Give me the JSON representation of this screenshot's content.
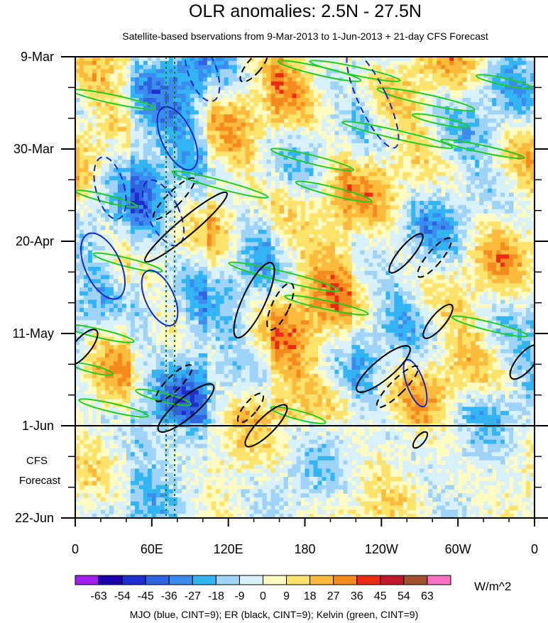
{
  "chart_data": {
    "type": "heatmap",
    "title": "OLR anomalies: 2.5N - 27.5N",
    "subtitle": "Satellite-based bservations from 9-Mar-2013 to 1-Jun-2013 + 21-day CFS Forecast",
    "x_ticks": [
      "0",
      "60E",
      "120E",
      "180",
      "120W",
      "60W",
      "0"
    ],
    "y_ticks": [
      "9-Mar",
      "30-Mar",
      "20-Apr",
      "11-May",
      "1-Jun",
      "22-Jun"
    ],
    "forecast_label_line1": "CFS",
    "forecast_label_line2": "Forecast",
    "observation_end": "1-Jun",
    "colorbar": {
      "labels": [
        "-63",
        "-54",
        "-45",
        "-36",
        "-27",
        "-18",
        "-9",
        "0",
        "9",
        "18",
        "27",
        "36",
        "45",
        "54",
        "63"
      ],
      "colors": [
        "#a020f0",
        "#1a00a8",
        "#1f2fcf",
        "#2f63e0",
        "#3c8cef",
        "#33b5f5",
        "#9fd3f8",
        "#d9f1fa",
        "#fffbc2",
        "#fde26b",
        "#fdbb3d",
        "#f58a1f",
        "#ef2a14",
        "#c2182e",
        "#a0522d",
        "#ff6fc2"
      ],
      "units": "W/m^2"
    },
    "contour_legend": "MJO (blue, CINT=9); ER (black, CINT=9); Kelvin (green, CINT=9)",
    "contour_colors": {
      "mjo": "#1428c8",
      "er": "#000000",
      "kelvin": "#22cc22"
    },
    "reference_lines": {
      "longitudes": [
        "~75E",
        "~82E"
      ],
      "color": "#1e7f1e",
      "style": "dotted"
    }
  }
}
